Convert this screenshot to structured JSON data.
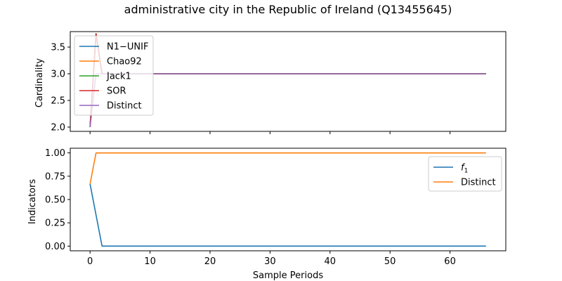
{
  "title": "administrative city in the Republic of Ireland (Q13455645)",
  "colors": {
    "blue": "#1f77b4",
    "orange": "#ff7f0e",
    "green": "#2ca02c",
    "red": "#d62728",
    "purple": "#9467bd"
  },
  "chart_data": [
    {
      "type": "line",
      "title": "administrative city in the Republic of Ireland (Q13455645)",
      "xlabel": "",
      "ylabel": "Cardinality",
      "xlim": [
        -3.3,
        69.3
      ],
      "ylim": [
        1.92,
        3.79
      ],
      "xticks": [
        0,
        10,
        20,
        30,
        40,
        50,
        60
      ],
      "xtick_labels_visible": false,
      "yticks": [
        2.0,
        2.5,
        3.0,
        3.5
      ],
      "ytick_labels": [
        "2.0",
        "2.5",
        "3.0",
        "3.5"
      ],
      "legend_position": "upper-left",
      "grid": false,
      "series": [
        {
          "name": "N1−UNIF",
          "color": "#1f77b4",
          "x": [
            0,
            1,
            2,
            66
          ],
          "y": [
            2.0,
            3.75,
            3.0,
            3.0
          ]
        },
        {
          "name": "Chao92",
          "color": "#ff7f0e",
          "x": [
            0,
            1,
            2,
            66
          ],
          "y": [
            2.0,
            3.75,
            3.0,
            3.0
          ]
        },
        {
          "name": "Jack1",
          "color": "#2ca02c",
          "x": [
            0,
            1,
            2,
            66
          ],
          "y": [
            2.0,
            3.75,
            3.0,
            3.0
          ]
        },
        {
          "name": "SOR",
          "color": "#d62728",
          "x": [
            0,
            1,
            2,
            66
          ],
          "y": [
            2.0,
            3.75,
            3.0,
            3.0
          ]
        },
        {
          "name": "Distinct",
          "color": "#9467bd",
          "x": [
            0,
            1,
            66
          ],
          "y": [
            2.0,
            3.0,
            3.0
          ]
        }
      ]
    },
    {
      "type": "line",
      "xlabel": "Sample Periods",
      "ylabel": "Indicators",
      "xlim": [
        -3.3,
        69.3
      ],
      "ylim": [
        -0.05,
        1.05
      ],
      "xticks": [
        0,
        10,
        20,
        30,
        40,
        50,
        60
      ],
      "xtick_labels": [
        "0",
        "10",
        "20",
        "30",
        "40",
        "50",
        "60"
      ],
      "yticks": [
        0.0,
        0.25,
        0.5,
        0.75,
        1.0
      ],
      "ytick_labels": [
        "0.00",
        "0.25",
        "0.50",
        "0.75",
        "1.00"
      ],
      "legend_position": "upper-right",
      "grid": false,
      "series": [
        {
          "name": "f1",
          "name_main": "f",
          "name_sub": "1",
          "color": "#1f77b4",
          "x": [
            0,
            2,
            66
          ],
          "y": [
            0.667,
            0.0,
            0.0
          ]
        },
        {
          "name": "Distinct",
          "color": "#ff7f0e",
          "x": [
            0,
            1,
            66
          ],
          "y": [
            0.667,
            1.0,
            1.0
          ]
        }
      ]
    }
  ]
}
